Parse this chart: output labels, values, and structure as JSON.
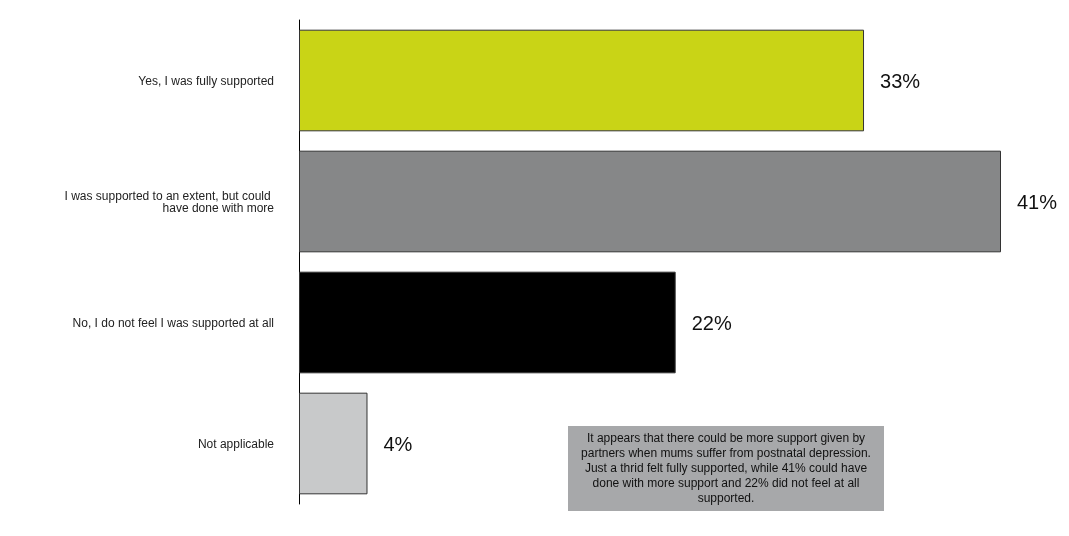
{
  "chart_data": {
    "type": "bar",
    "orientation": "horizontal",
    "categories": [
      "Yes, I was fully supported",
      "I was supported to an extent, but could have done with more",
      "No, I do not feel I was supported at all",
      "Not applicable"
    ],
    "values": [
      33,
      41,
      22,
      4
    ],
    "colors": [
      "#c9d416",
      "#868788",
      "#000000",
      "#c8c9ca"
    ],
    "value_labels": [
      "33%",
      "41%",
      "22%",
      "4%"
    ],
    "annotations": [
      "It appears that there could be more support given by partners when mums suffer from postnatal depression. Just a thrid felt fully supported, while 41% could have done with more support and 22% did not feel at all supported."
    ]
  }
}
